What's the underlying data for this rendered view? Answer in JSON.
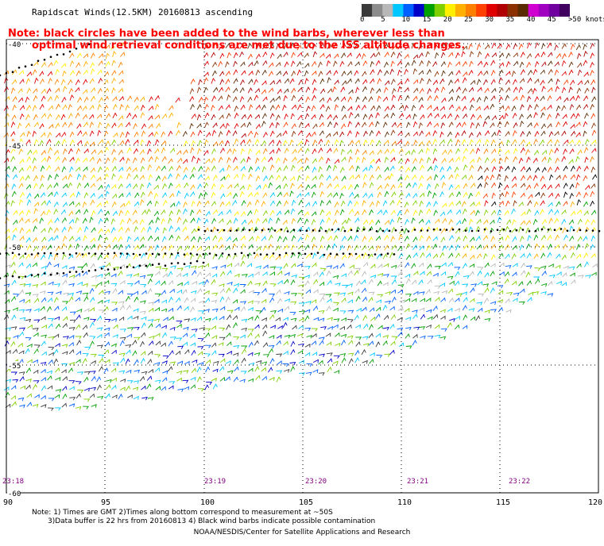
{
  "header": {
    "title": "Rapidscat Winds(12.5KM) 20160813 ascending",
    "note_line1": "Note: black circles have been added to the wind barbs, wherever less than",
    "note_line2": "optimal wind retrieval conditions are met due to the ISS altitude changes."
  },
  "colorbar": {
    "labels": [
      "0",
      "5",
      "10",
      "15",
      "20",
      "25",
      "30",
      "35",
      "40",
      "45",
      ">50 knots"
    ],
    "colors": [
      "#3a3a3a",
      "#8c8c8c",
      "#b8b8b8",
      "#00c8ff",
      "#0060ff",
      "#0000c8",
      "#00a000",
      "#80d000",
      "#fff000",
      "#ffb000",
      "#ff8000",
      "#ff4000",
      "#e00000",
      "#b00000",
      "#8b3000",
      "#5a2a00",
      "#d000d0",
      "#a000c0",
      "#7000a0",
      "#400060"
    ]
  },
  "map": {
    "lat_labels": [
      "-40",
      "-45",
      "-50",
      "-55",
      "-60"
    ],
    "lon_labels": [
      "90",
      "95",
      "100",
      "105",
      "110",
      "115",
      "120"
    ],
    "time_labels": [
      "23:18",
      "23:19",
      "23:20",
      "23:21",
      "23:22"
    ],
    "time_color": "#800080"
  },
  "footer": {
    "line1": "Note: 1) Times are GMT 2)Times along bottom correspond to measurement at ~50S",
    "line2": "3)Data buffer is 22 hrs from 20160813 4) Black wind barbs indicate possible contamination",
    "line3": "NOAA/NESDIS/Center for Satellite Applications and Research"
  }
}
